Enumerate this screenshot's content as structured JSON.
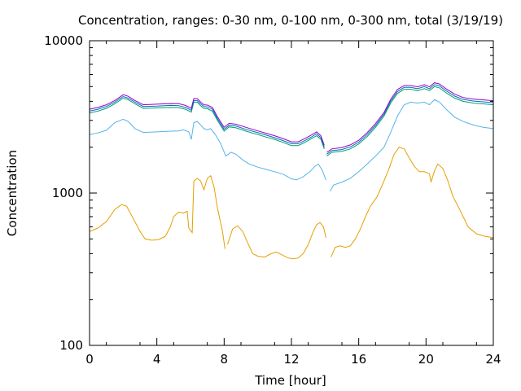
{
  "chart_data": {
    "type": "line",
    "title": "Concentration, ranges: 0-30 nm, 0-100 nm, 0-300 nm, total (3/19/19)",
    "xlabel": "Time [hour]",
    "ylabel": "Concentration",
    "xlim": [
      0,
      24
    ],
    "ylim": [
      100,
      10000
    ],
    "yscale": "log",
    "grid": false,
    "legend": "none",
    "x_ticks": [
      0,
      4,
      8,
      12,
      16,
      20,
      24
    ],
    "x_tick_labels": [
      "0",
      "4",
      "8",
      "12",
      "16",
      "20",
      "24"
    ],
    "y_ticks": [
      100,
      1000,
      10000
    ],
    "y_tick_labels": [
      "100",
      "1000",
      "10000"
    ],
    "series": [
      {
        "color": "#e69f00",
        "points": [
          [
            0,
            560
          ],
          [
            0.5,
            590
          ],
          [
            1,
            650
          ],
          [
            1.5,
            780
          ],
          [
            1.9,
            840
          ],
          [
            2.2,
            820
          ],
          [
            2.6,
            680
          ],
          [
            3,
            560
          ],
          [
            3.3,
            500
          ],
          [
            3.7,
            490
          ],
          [
            4.1,
            495
          ],
          [
            4.5,
            520
          ],
          [
            4.8,
            600
          ],
          [
            5,
            700
          ],
          [
            5.3,
            750
          ],
          [
            5.6,
            740
          ],
          [
            5.8,
            760
          ],
          [
            5.9,
            590
          ],
          [
            6.1,
            550
          ],
          [
            6.2,
            1200
          ],
          [
            6.4,
            1250
          ],
          [
            6.6,
            1200
          ],
          [
            6.8,
            1050
          ],
          [
            7,
            1250
          ],
          [
            7.2,
            1300
          ],
          [
            7.4,
            1100
          ],
          [
            7.6,
            800
          ],
          [
            7.9,
            560
          ],
          [
            8.05,
            430
          ],
          null,
          [
            8.2,
            460
          ],
          [
            8.5,
            580
          ],
          [
            8.8,
            610
          ],
          [
            9.1,
            560
          ],
          [
            9.4,
            470
          ],
          [
            9.7,
            400
          ],
          [
            10,
            385
          ],
          [
            10.4,
            380
          ],
          [
            10.8,
            400
          ],
          [
            11.1,
            410
          ],
          [
            11.4,
            395
          ],
          [
            11.8,
            375
          ],
          [
            12.1,
            370
          ],
          [
            12.4,
            375
          ],
          [
            12.7,
            400
          ],
          [
            13,
            460
          ],
          [
            13.3,
            560
          ],
          [
            13.5,
            620
          ],
          [
            13.7,
            640
          ],
          [
            13.9,
            600
          ],
          [
            14.05,
            510
          ],
          null,
          [
            14.35,
            380
          ],
          [
            14.6,
            440
          ],
          [
            14.9,
            450
          ],
          [
            15.2,
            440
          ],
          [
            15.5,
            450
          ],
          [
            15.8,
            500
          ],
          [
            16.1,
            580
          ],
          [
            16.4,
            700
          ],
          [
            16.7,
            820
          ],
          [
            17.1,
            950
          ],
          [
            17.5,
            1200
          ],
          [
            17.8,
            1450
          ],
          [
            18.1,
            1800
          ],
          [
            18.4,
            2000
          ],
          [
            18.7,
            1950
          ],
          [
            19,
            1700
          ],
          [
            19.3,
            1500
          ],
          [
            19.6,
            1380
          ],
          [
            19.9,
            1380
          ],
          [
            20.2,
            1340
          ],
          [
            20.3,
            1180
          ],
          [
            20.5,
            1400
          ],
          [
            20.7,
            1550
          ],
          [
            21,
            1450
          ],
          [
            21.3,
            1200
          ],
          [
            21.6,
            950
          ],
          [
            22,
            780
          ],
          [
            22.5,
            600
          ],
          [
            23,
            540
          ],
          [
            23.5,
            520
          ],
          [
            24,
            510
          ]
        ]
      },
      {
        "color": "#56b4e9",
        "points": [
          [
            0,
            2420
          ],
          [
            0.5,
            2480
          ],
          [
            1,
            2580
          ],
          [
            1.5,
            2900
          ],
          [
            2,
            3050
          ],
          [
            2.3,
            2950
          ],
          [
            2.7,
            2650
          ],
          [
            3.2,
            2500
          ],
          [
            4,
            2520
          ],
          [
            4.8,
            2550
          ],
          [
            5.3,
            2560
          ],
          [
            5.6,
            2600
          ],
          [
            5.9,
            2520
          ],
          [
            6.05,
            2250
          ],
          [
            6.2,
            2900
          ],
          [
            6.4,
            2950
          ],
          [
            6.6,
            2800
          ],
          [
            6.8,
            2650
          ],
          [
            7.0,
            2600
          ],
          [
            7.2,
            2650
          ],
          [
            7.5,
            2400
          ],
          [
            7.8,
            2100
          ],
          [
            8.1,
            1750
          ],
          [
            8.4,
            1850
          ],
          [
            8.7,
            1800
          ],
          [
            9.1,
            1650
          ],
          [
            9.5,
            1550
          ],
          [
            10,
            1480
          ],
          [
            10.5,
            1430
          ],
          [
            11,
            1380
          ],
          [
            11.5,
            1330
          ],
          [
            12,
            1240
          ],
          [
            12.3,
            1220
          ],
          [
            12.7,
            1280
          ],
          [
            13.1,
            1380
          ],
          [
            13.4,
            1500
          ],
          [
            13.6,
            1550
          ],
          [
            13.85,
            1400
          ],
          [
            14.05,
            1220
          ],
          null,
          [
            14.3,
            1030
          ],
          [
            14.5,
            1130
          ],
          [
            15,
            1180
          ],
          [
            15.5,
            1250
          ],
          [
            16,
            1380
          ],
          [
            16.5,
            1550
          ],
          [
            17,
            1750
          ],
          [
            17.5,
            2000
          ],
          [
            17.9,
            2500
          ],
          [
            18.3,
            3200
          ],
          [
            18.7,
            3800
          ],
          [
            19.1,
            3950
          ],
          [
            19.5,
            3900
          ],
          [
            19.9,
            3950
          ],
          [
            20.2,
            3800
          ],
          [
            20.5,
            4100
          ],
          [
            20.8,
            3950
          ],
          [
            21.2,
            3550
          ],
          [
            21.7,
            3150
          ],
          [
            22.2,
            2950
          ],
          [
            22.8,
            2800
          ],
          [
            23.4,
            2700
          ],
          [
            24,
            2650
          ]
        ]
      },
      {
        "color": "#009e73",
        "points": [
          [
            0,
            3350
          ],
          [
            0.5,
            3450
          ],
          [
            1,
            3600
          ],
          [
            1.5,
            3850
          ],
          [
            2,
            4200
          ],
          [
            2.3,
            4100
          ],
          [
            2.7,
            3850
          ],
          [
            3.2,
            3600
          ],
          [
            4,
            3620
          ],
          [
            4.8,
            3650
          ],
          [
            5.3,
            3640
          ],
          [
            5.7,
            3550
          ],
          [
            6.05,
            3400
          ],
          [
            6.2,
            3950
          ],
          [
            6.4,
            3950
          ],
          [
            6.6,
            3750
          ],
          [
            6.8,
            3600
          ],
          [
            7.0,
            3580
          ],
          [
            7.3,
            3450
          ],
          [
            7.6,
            3000
          ],
          [
            8.0,
            2550
          ],
          [
            8.3,
            2720
          ],
          [
            8.7,
            2680
          ],
          [
            9.3,
            2550
          ],
          [
            10,
            2420
          ],
          [
            10.5,
            2330
          ],
          [
            11,
            2250
          ],
          [
            11.5,
            2150
          ],
          [
            12,
            2050
          ],
          [
            12.4,
            2050
          ],
          [
            12.8,
            2150
          ],
          [
            13.2,
            2280
          ],
          [
            13.5,
            2380
          ],
          [
            13.75,
            2250
          ],
          [
            13.95,
            1950
          ],
          null,
          [
            14.1,
            1750
          ],
          [
            14.4,
            1850
          ],
          [
            15,
            1880
          ],
          [
            15.5,
            1950
          ],
          [
            16,
            2100
          ],
          [
            16.5,
            2350
          ],
          [
            17,
            2700
          ],
          [
            17.5,
            3200
          ],
          [
            17.9,
            3900
          ],
          [
            18.3,
            4500
          ],
          [
            18.7,
            4800
          ],
          [
            19.1,
            4800
          ],
          [
            19.5,
            4700
          ],
          [
            19.9,
            4850
          ],
          [
            20.2,
            4700
          ],
          [
            20.5,
            5000
          ],
          [
            20.8,
            4900
          ],
          [
            21.2,
            4550
          ],
          [
            21.7,
            4200
          ],
          [
            22.2,
            4000
          ],
          [
            22.8,
            3900
          ],
          [
            23.4,
            3850
          ],
          [
            24,
            3800
          ]
        ]
      },
      {
        "color": "#0072b2",
        "points": [
          [
            0,
            3450
          ],
          [
            0.5,
            3550
          ],
          [
            1,
            3700
          ],
          [
            1.5,
            3950
          ],
          [
            2,
            4300
          ],
          [
            2.3,
            4200
          ],
          [
            2.7,
            3950
          ],
          [
            3.2,
            3700
          ],
          [
            4,
            3720
          ],
          [
            4.8,
            3760
          ],
          [
            5.3,
            3750
          ],
          [
            5.7,
            3650
          ],
          [
            6.05,
            3500
          ],
          [
            6.2,
            4050
          ],
          [
            6.4,
            4050
          ],
          [
            6.6,
            3850
          ],
          [
            6.8,
            3700
          ],
          [
            7.0,
            3680
          ],
          [
            7.3,
            3550
          ],
          [
            7.6,
            3080
          ],
          [
            8.0,
            2620
          ],
          [
            8.3,
            2790
          ],
          [
            8.7,
            2750
          ],
          [
            9.3,
            2620
          ],
          [
            10,
            2490
          ],
          [
            10.5,
            2400
          ],
          [
            11,
            2310
          ],
          [
            11.5,
            2210
          ],
          [
            12,
            2110
          ],
          [
            12.4,
            2110
          ],
          [
            12.8,
            2210
          ],
          [
            13.2,
            2340
          ],
          [
            13.5,
            2450
          ],
          [
            13.75,
            2310
          ],
          [
            13.95,
            2000
          ],
          null,
          [
            14.1,
            1800
          ],
          [
            14.4,
            1900
          ],
          [
            15,
            1930
          ],
          [
            15.5,
            2010
          ],
          [
            16,
            2160
          ],
          [
            16.5,
            2420
          ],
          [
            17,
            2780
          ],
          [
            17.5,
            3290
          ],
          [
            17.9,
            4010
          ],
          [
            18.3,
            4640
          ],
          [
            18.7,
            4940
          ],
          [
            19.1,
            4940
          ],
          [
            19.5,
            4840
          ],
          [
            19.9,
            5000
          ],
          [
            20.2,
            4840
          ],
          [
            20.5,
            5150
          ],
          [
            20.8,
            5050
          ],
          [
            21.2,
            4690
          ],
          [
            21.7,
            4330
          ],
          [
            22.2,
            4120
          ],
          [
            22.8,
            4020
          ],
          [
            23.4,
            3970
          ],
          [
            24,
            3920
          ]
        ]
      },
      {
        "color": "#9400d3",
        "points": [
          [
            0,
            3550
          ],
          [
            0.5,
            3650
          ],
          [
            1,
            3800
          ],
          [
            1.5,
            4050
          ],
          [
            2,
            4420
          ],
          [
            2.3,
            4320
          ],
          [
            2.7,
            4050
          ],
          [
            3.2,
            3800
          ],
          [
            4,
            3830
          ],
          [
            4.8,
            3870
          ],
          [
            5.3,
            3860
          ],
          [
            5.7,
            3760
          ],
          [
            6.05,
            3600
          ],
          [
            6.2,
            4170
          ],
          [
            6.4,
            4170
          ],
          [
            6.6,
            3960
          ],
          [
            6.8,
            3800
          ],
          [
            7.0,
            3780
          ],
          [
            7.3,
            3650
          ],
          [
            7.6,
            3170
          ],
          [
            8.0,
            2700
          ],
          [
            8.3,
            2870
          ],
          [
            8.7,
            2830
          ],
          [
            9.3,
            2700
          ],
          [
            10,
            2560
          ],
          [
            10.5,
            2470
          ],
          [
            11,
            2380
          ],
          [
            11.5,
            2280
          ],
          [
            12,
            2170
          ],
          [
            12.4,
            2170
          ],
          [
            12.8,
            2280
          ],
          [
            13.2,
            2410
          ],
          [
            13.5,
            2520
          ],
          [
            13.75,
            2380
          ],
          [
            13.95,
            2060
          ],
          null,
          [
            14.1,
            1850
          ],
          [
            14.4,
            1950
          ],
          [
            15,
            1990
          ],
          [
            15.5,
            2070
          ],
          [
            16,
            2220
          ],
          [
            16.5,
            2490
          ],
          [
            17,
            2860
          ],
          [
            17.5,
            3380
          ],
          [
            17.9,
            4120
          ],
          [
            18.3,
            4780
          ],
          [
            18.7,
            5080
          ],
          [
            19.1,
            5080
          ],
          [
            19.5,
            4980
          ],
          [
            19.9,
            5150
          ],
          [
            20.2,
            4980
          ],
          [
            20.5,
            5300
          ],
          [
            20.8,
            5200
          ],
          [
            21.2,
            4830
          ],
          [
            21.7,
            4460
          ],
          [
            22.2,
            4240
          ],
          [
            22.8,
            4140
          ],
          [
            23.4,
            4090
          ],
          [
            24,
            4040
          ]
        ]
      }
    ]
  }
}
